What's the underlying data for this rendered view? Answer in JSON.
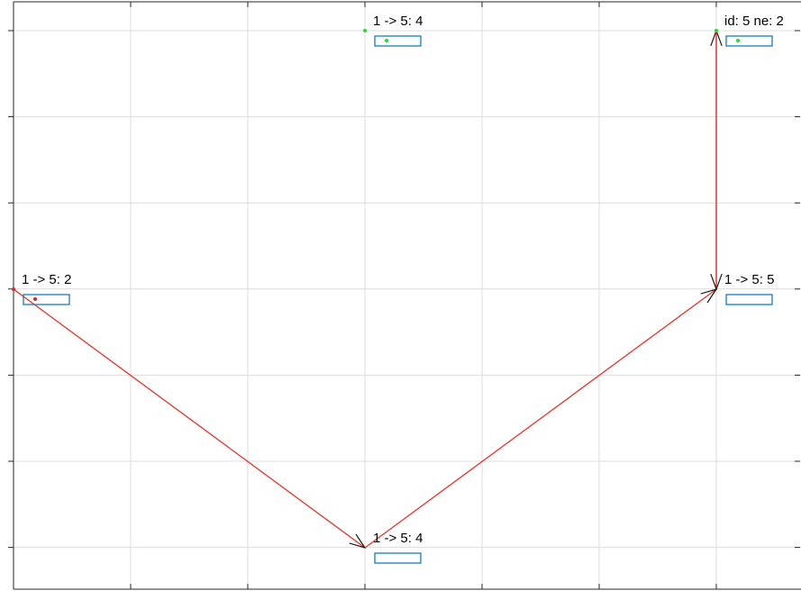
{
  "colors": {
    "background": "#ffffff",
    "grid": "#dcdcdc",
    "axis": "#262626",
    "edge": "#e8332a",
    "arrowhead": "#1a1a1a",
    "node_box": "#0072bd",
    "node_marker_active": "#22dd22",
    "node_marker_origin": "#d9252b"
  },
  "nodes": [
    {
      "id": "n-top-middle",
      "label": "1 -> 5: 4",
      "marker": "node_marker_active"
    },
    {
      "id": "n-top-right",
      "label": "id: 5 ne: 2",
      "marker": "node_marker_active"
    },
    {
      "id": "n-left",
      "label": "1 -> 5: 2",
      "marker": "node_marker_origin"
    },
    {
      "id": "n-right",
      "label": "1 -> 5: 5",
      "marker": null
    },
    {
      "id": "n-bottom-middle",
      "label": "1 -> 5: 4",
      "marker": null
    }
  ],
  "edges": [
    {
      "from": "n-left",
      "to": "n-bottom-middle"
    },
    {
      "from": "n-bottom-middle",
      "to": "n-right"
    },
    {
      "from": "n-right",
      "to": "n-top-right"
    },
    {
      "from": "n-top-right",
      "to": "n-right"
    }
  ]
}
